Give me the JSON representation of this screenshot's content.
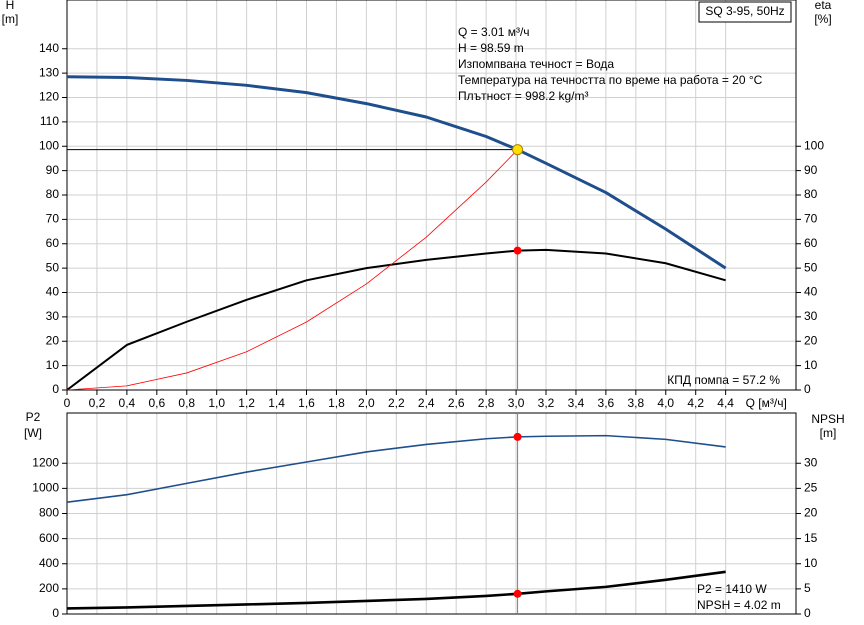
{
  "chart_data": [
    {
      "type": "line",
      "title": "SQ 3-95, 50Hz",
      "y_label": [
        "H",
        "[m]"
      ],
      "y2_label": [
        "eta",
        "[%]"
      ],
      "x_label": "Q [м³/ч]",
      "annotations": [
        "Q = 3.01 м³/ч",
        "H = 98.59 m",
        "Изпомпвана течност = Вода",
        "Температура на течността по време на работа = 20 °C",
        "Плътност = 998.2 kg/m³"
      ],
      "note": "КПД помпа = 57.2 %",
      "x": [
        0,
        0.4,
        0.8,
        1.2,
        1.6,
        2.0,
        2.4,
        2.8,
        3.01,
        3.2,
        3.6,
        4.0,
        4.4
      ],
      "series": [
        {
          "color": "#1f4e8c",
          "values": [
            128.5,
            128.2,
            127,
            125,
            122,
            117.5,
            112,
            104,
            98.59,
            93,
            81,
            66,
            50
          ]
        },
        {
          "color": "#000000",
          "axis": "y2",
          "values": [
            0,
            18.5,
            28,
            37,
            45,
            50,
            53.4,
            56,
            57.2,
            57.5,
            56,
            52,
            45
          ]
        },
        {
          "color": "#ff0000",
          "values": [
            0,
            1.7,
            7,
            15.7,
            27.9,
            43.5,
            62.7,
            85.3,
            98.59,
            null,
            null,
            null,
            null
          ]
        }
      ],
      "markers": [
        {
          "x": 3.01,
          "y": 98.59,
          "color": "#ffe000",
          "guide": "cross"
        },
        {
          "x": 3.01,
          "y": 57.2,
          "axis": "y2",
          "color": "#ff0000"
        }
      ],
      "xlim": [
        0,
        4.87
      ],
      "xticks": [
        0,
        {
          "value": 0.2,
          "label": "0,2"
        },
        {
          "value": 0.4,
          "label": "0,4"
        },
        {
          "value": 0.6,
          "label": "0,6"
        },
        {
          "value": 0.8,
          "label": "0,8"
        },
        {
          "value": 1.0,
          "label": "1,0"
        },
        {
          "value": 1.2,
          "label": "1,2"
        },
        {
          "value": 1.4,
          "label": "1,4"
        },
        {
          "value": 1.6,
          "label": "1,6"
        },
        {
          "value": 1.8,
          "label": "1,8"
        },
        {
          "value": 2.0,
          "label": "2,0"
        },
        {
          "value": 2.2,
          "label": "2,2"
        },
        {
          "value": 2.4,
          "label": "2,4"
        },
        {
          "value": 2.6,
          "label": "2,6"
        },
        {
          "value": 2.8,
          "label": "2,8"
        },
        {
          "value": 3.0,
          "label": "3,0"
        },
        {
          "value": 3.2,
          "label": "3,2"
        },
        {
          "value": 3.4,
          "label": "3,4"
        },
        {
          "value": 3.6,
          "label": "3,6"
        },
        {
          "value": 3.8,
          "label": "3,8"
        },
        {
          "value": 4.0,
          "label": "4,0"
        },
        {
          "value": 4.2,
          "label": "4,2"
        },
        {
          "value": 4.4,
          "label": "4,4"
        }
      ],
      "ylim": [
        0,
        160
      ],
      "yticks": [
        0,
        10,
        20,
        30,
        40,
        50,
        60,
        70,
        80,
        90,
        100,
        110,
        120,
        130,
        140
      ],
      "y2lim": [
        0,
        160
      ],
      "y2ticks": [
        0,
        10,
        20,
        30,
        40,
        50,
        60,
        70,
        80,
        90,
        100
      ],
      "grid": true
    },
    {
      "type": "line",
      "y_label": [
        "P2",
        "[W]"
      ],
      "y2_label": [
        "NPSH",
        "[m]"
      ],
      "annotations": [
        "P2 = 1410 W",
        "NPSH = 4.02 m"
      ],
      "x": [
        0,
        0.4,
        0.8,
        1.2,
        1.6,
        2.0,
        2.4,
        2.8,
        3.01,
        3.2,
        3.6,
        4.0,
        4.4
      ],
      "series": [
        {
          "color": "#1f4e8c",
          "values": [
            890,
            950,
            1040,
            1130,
            1210,
            1290,
            1350,
            1395,
            1410,
            1415,
            1420,
            1390,
            1330
          ]
        },
        {
          "color": "#000000",
          "axis": "y2",
          "values": [
            1.1,
            1.3,
            1.6,
            1.9,
            2.2,
            2.6,
            3.0,
            3.6,
            4.02,
            4.5,
            5.4,
            6.8,
            8.4
          ]
        }
      ],
      "markers": [
        {
          "x": 3.01,
          "y": 1410,
          "color": "#ff0000",
          "guide": "vertical"
        },
        {
          "x": 3.01,
          "y": 4.02,
          "axis": "y2",
          "color": "#ff0000"
        }
      ],
      "xlim": [
        0,
        4.87
      ],
      "ylim": [
        0,
        1600
      ],
      "yticks": [
        0,
        200,
        400,
        600,
        800,
        1000,
        1200
      ],
      "y2lim": [
        0,
        40
      ],
      "y2ticks": [
        0,
        5,
        10,
        15,
        20,
        25,
        30
      ],
      "grid": true
    }
  ]
}
